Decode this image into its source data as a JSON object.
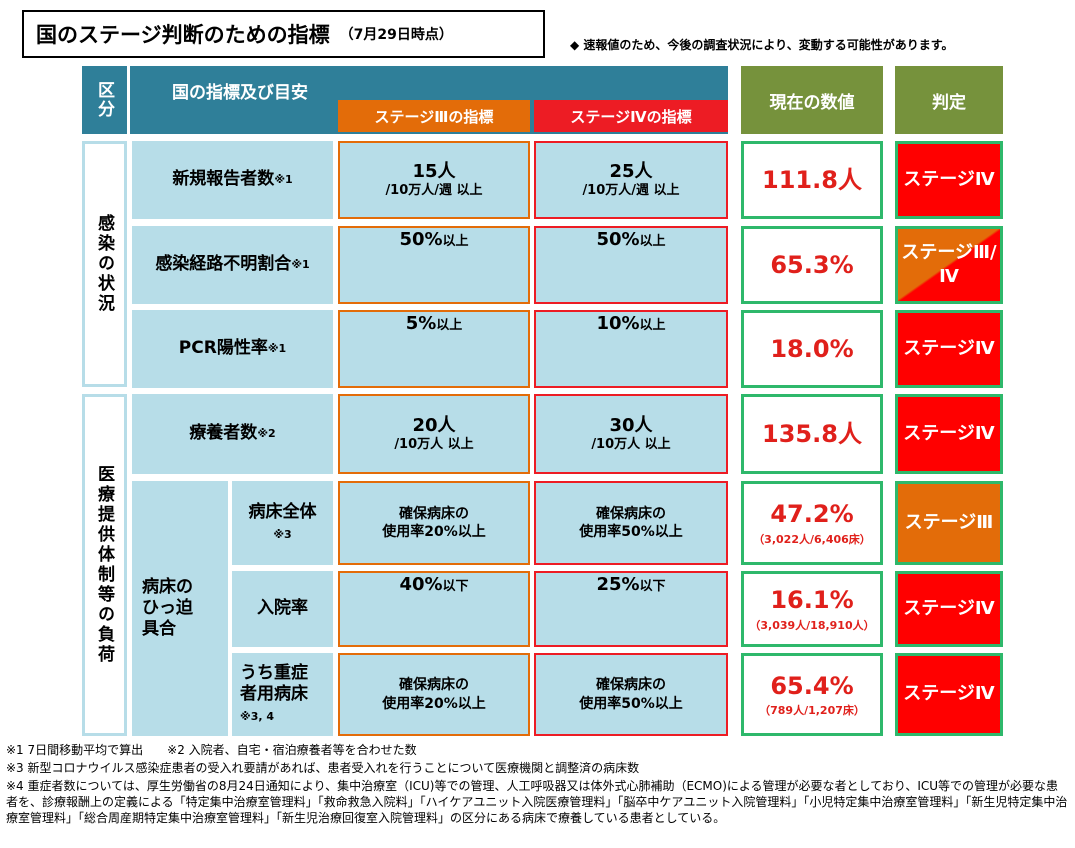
{
  "title": {
    "main": "国のステージ判断のための指標",
    "date": "（7月29日時点）"
  },
  "note": "◆ 速報値のため、今後の調査状況により、変動する可能性があります。",
  "headers": {
    "kubun": "区分",
    "indicator": "国の指標及び目安",
    "stage3": "ステージⅢの指標",
    "stage4": "ステージⅣの指標",
    "current": "現在の数値",
    "judge": "判定"
  },
  "sections": {
    "infection": "感染の状況",
    "medical": "医療提供体制等の負荷"
  },
  "group_label": "病床のひっ迫具合",
  "rows": [
    {
      "label": "新規報告者数",
      "ref": "※1",
      "s3_main": "15人",
      "s3_sub": "/10万人/週 以上",
      "s4_main": "25人",
      "s4_sub": "/10万人/週 以上",
      "value": "111.8人",
      "detail": "",
      "judge": "ステージⅣ"
    },
    {
      "label": "感染経路不明割合",
      "ref": "※1",
      "s3_main": "50%",
      "s3_sub": "以上",
      "s4_main": "50%",
      "s4_sub": "以上",
      "value": "65.3%",
      "detail": "",
      "judge": "ステージⅢ/Ⅳ"
    },
    {
      "label": "PCR陽性率",
      "ref": "※1",
      "s3_main": "5%",
      "s3_sub": "以上",
      "s4_main": "10%",
      "s4_sub": "以上",
      "value": "18.0%",
      "detail": "",
      "judge": "ステージⅣ"
    },
    {
      "label": "療養者数",
      "ref": "※2",
      "s3_main": "20人",
      "s3_sub": "/10万人 以上",
      "s4_main": "30人",
      "s4_sub": "/10万人 以上",
      "value": "135.8人",
      "detail": "",
      "judge": "ステージⅣ"
    },
    {
      "label": "病床全体",
      "ref": "※3",
      "s3_line1": "確保病床の",
      "s3_line2": "使用率20%以上",
      "s4_line1": "確保病床の",
      "s4_line2": "使用率50%以上",
      "value": "47.2%",
      "detail": "（3,022人/6,406床）",
      "judge": "ステージⅢ"
    },
    {
      "label": "入院率",
      "ref": "",
      "s3_main": "40%",
      "s3_sub": "以下",
      "s4_main": "25%",
      "s4_sub": "以下",
      "value": "16.1%",
      "detail": "（3,039人/18,910人）",
      "judge": "ステージⅣ"
    },
    {
      "label": "うち重症者用病床",
      "ref": "※3, 4",
      "s3_line1": "確保病床の",
      "s3_line2": "使用率20%以上",
      "s4_line1": "確保病床の",
      "s4_line2": "使用率50%以上",
      "value": "65.4%",
      "detail": "（789人/1,207床）",
      "judge": "ステージⅣ"
    }
  ],
  "footnotes": [
    "※1 7日間移動平均で算出　　※2 入院者、自宅・宿泊療養者等を合わせた数",
    "※3 新型コロナウイルス感染症患者の受入れ要請があれば、患者受入れを行うことについて医療機関と調整済の病床数",
    "※4 重症者数については、厚生労働省の8月24日通知により、集中治療室（ICU)等での管理、人工呼吸器又は体外式心肺補助（ECMO)による管理が必要な者としており、ICU等での管理が必要な患者を、診療報酬上の定義による「特定集中治療室管理料」「救命救急入院料」「ハイケアユニット入院医療管理料」「脳卒中ケアユニット入院管理料」「小児特定集中治療室管理料」「新生児特定集中治療室管理料」「総合周産期特定集中治療室管理料」「新生児治療回復室入院管理料」の区分にある病床で療養している患者としている。"
  ]
}
